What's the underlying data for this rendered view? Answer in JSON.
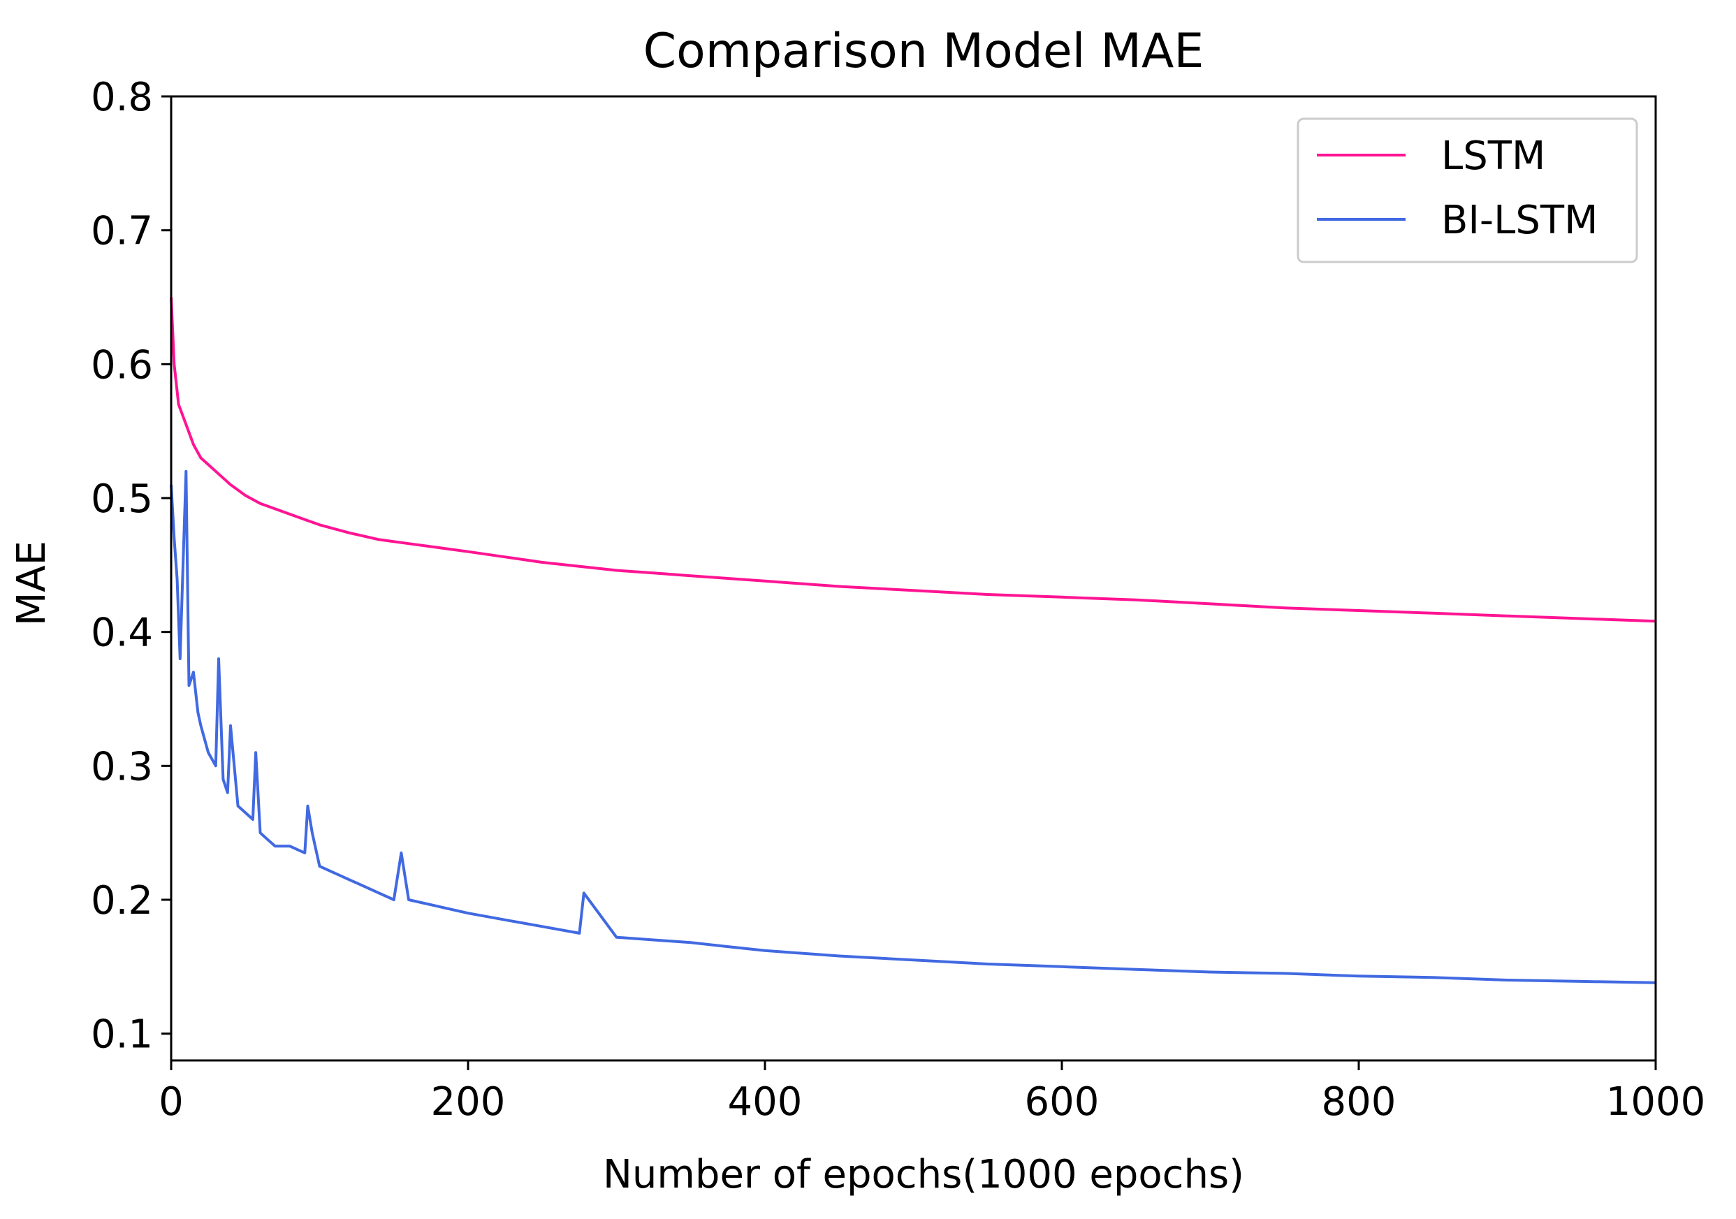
{
  "chart_data": {
    "type": "line",
    "title": "Comparison Model MAE",
    "xlabel": "Number of epochs(1000 epochs)",
    "ylabel": "MAE",
    "xlim": [
      0,
      1000
    ],
    "ylim": [
      0.08,
      0.8
    ],
    "xticks": [
      0,
      200,
      400,
      600,
      800,
      1000
    ],
    "xtick_labels": [
      "0",
      "200",
      "400",
      "600",
      "800",
      "1000"
    ],
    "yticks": [
      0.1,
      0.2,
      0.3,
      0.4,
      0.5,
      0.6,
      0.7,
      0.8
    ],
    "ytick_labels": [
      "0.1",
      "0.2",
      "0.3",
      "0.4",
      "0.5",
      "0.6",
      "0.7",
      "0.8"
    ],
    "grid": false,
    "legend_position": "top-right",
    "series": [
      {
        "name": "LSTM",
        "color": "#ff1493",
        "x": [
          0,
          2,
          5,
          10,
          15,
          20,
          30,
          40,
          50,
          60,
          75,
          90,
          100,
          120,
          140,
          160,
          180,
          200,
          225,
          250,
          275,
          300,
          325,
          350,
          375,
          400,
          450,
          500,
          550,
          600,
          650,
          700,
          750,
          800,
          850,
          900,
          950,
          1000
        ],
        "y": [
          0.65,
          0.6,
          0.57,
          0.555,
          0.54,
          0.53,
          0.52,
          0.51,
          0.502,
          0.496,
          0.49,
          0.484,
          0.48,
          0.474,
          0.469,
          0.466,
          0.463,
          0.46,
          0.456,
          0.452,
          0.449,
          0.446,
          0.444,
          0.442,
          0.44,
          0.438,
          0.434,
          0.431,
          0.428,
          0.426,
          0.424,
          0.421,
          0.418,
          0.416,
          0.414,
          0.412,
          0.41,
          0.408
        ]
      },
      {
        "name": "BI-LSTM",
        "color": "#4169e1",
        "x": [
          0,
          2,
          4,
          6,
          8,
          10,
          12,
          15,
          18,
          20,
          25,
          30,
          32,
          35,
          38,
          40,
          45,
          50,
          55,
          57,
          60,
          65,
          70,
          80,
          90,
          92,
          95,
          100,
          110,
          120,
          130,
          140,
          150,
          155,
          160,
          180,
          200,
          225,
          250,
          275,
          278,
          300,
          325,
          350,
          375,
          400,
          450,
          500,
          550,
          600,
          650,
          700,
          750,
          800,
          850,
          900,
          950,
          1000
        ],
        "y": [
          0.51,
          0.47,
          0.44,
          0.38,
          0.45,
          0.52,
          0.36,
          0.37,
          0.34,
          0.33,
          0.31,
          0.3,
          0.38,
          0.29,
          0.28,
          0.33,
          0.27,
          0.265,
          0.26,
          0.31,
          0.25,
          0.245,
          0.24,
          0.24,
          0.235,
          0.27,
          0.25,
          0.225,
          0.22,
          0.215,
          0.21,
          0.205,
          0.2,
          0.235,
          0.2,
          0.195,
          0.19,
          0.185,
          0.18,
          0.175,
          0.205,
          0.172,
          0.17,
          0.168,
          0.165,
          0.162,
          0.158,
          0.155,
          0.152,
          0.15,
          0.148,
          0.146,
          0.145,
          0.143,
          0.142,
          0.14,
          0.139,
          0.138
        ]
      }
    ]
  }
}
